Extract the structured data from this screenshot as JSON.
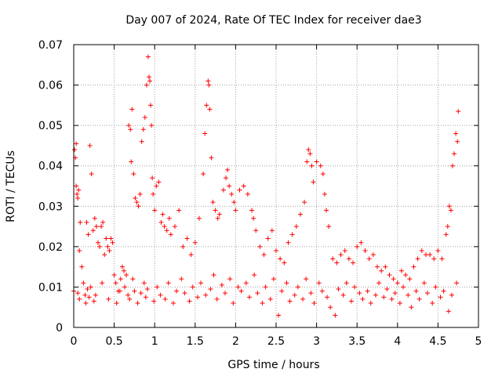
{
  "chart_data": {
    "type": "scatter",
    "title": "Day 007 of 2024, Rate Of TEC Index for receiver dae3",
    "xlabel": "GPS time / hours",
    "ylabel": "ROTI / TECUs",
    "xlim": [
      0,
      5
    ],
    "ylim": [
      0,
      0.07
    ],
    "xticks": [
      0,
      0.5,
      1,
      1.5,
      2,
      2.5,
      3,
      3.5,
      4,
      4.5,
      5
    ],
    "yticks": [
      0,
      0.01,
      0.02,
      0.03,
      0.04,
      0.05,
      0.06,
      0.07
    ],
    "xtick_labels": [
      "0",
      "0.5",
      "1",
      "1.5",
      "2",
      "2.5",
      "3",
      "3.5",
      "4",
      "4.5",
      "5"
    ],
    "ytick_labels": [
      "0",
      "0.01",
      "0.02",
      "0.03",
      "0.04",
      "0.05",
      "0.06",
      "0.07"
    ],
    "grid": true,
    "marker": "+",
    "color": "#ff0000",
    "series": [
      {
        "name": "dae3",
        "x": [
          0.0,
          0.01,
          0.02,
          0.03,
          0.04,
          0.05,
          0.06,
          0.07,
          0.08,
          0.1,
          0.12,
          0.14,
          0.16,
          0.18,
          0.2,
          0.22,
          0.24,
          0.26,
          0.28,
          0.3,
          0.32,
          0.34,
          0.36,
          0.38,
          0.4,
          0.42,
          0.44,
          0.46,
          0.48,
          0.5,
          0.52,
          0.55,
          0.58,
          0.6,
          0.62,
          0.65,
          0.68,
          0.7,
          0.71,
          0.72,
          0.74,
          0.76,
          0.78,
          0.8,
          0.82,
          0.84,
          0.86,
          0.88,
          0.9,
          0.92,
          0.93,
          0.94,
          0.95,
          0.96,
          0.97,
          0.98,
          1.0,
          1.02,
          1.05,
          1.08,
          1.1,
          1.12,
          1.15,
          1.18,
          1.2,
          1.25,
          1.3,
          1.35,
          1.4,
          1.45,
          1.5,
          1.55,
          1.6,
          1.62,
          1.64,
          1.66,
          1.67,
          1.68,
          1.7,
          1.72,
          1.75,
          1.78,
          1.8,
          1.85,
          1.88,
          1.9,
          1.92,
          1.95,
          1.98,
          2.0,
          2.05,
          2.1,
          2.15,
          2.2,
          2.22,
          2.25,
          2.3,
          2.35,
          2.4,
          2.45,
          2.5,
          2.55,
          2.6,
          2.65,
          2.7,
          2.75,
          2.8,
          2.85,
          2.88,
          2.9,
          2.92,
          2.94,
          2.96,
          3.0,
          3.05,
          3.08,
          3.1,
          3.12,
          3.15,
          3.2,
          3.25,
          3.3,
          3.35,
          3.4,
          3.45,
          3.5,
          3.55,
          3.6,
          3.65,
          3.7,
          3.75,
          3.8,
          3.85,
          3.9,
          3.95,
          4.0,
          4.05,
          4.1,
          4.15,
          4.2,
          4.25,
          4.3,
          4.35,
          4.4,
          4.45,
          4.5,
          4.55,
          4.6,
          4.62,
          4.64,
          4.66,
          4.68,
          4.7,
          4.72,
          4.74,
          4.75,
          0.03,
          0.05,
          0.07,
          0.15,
          0.17,
          0.19,
          0.21,
          0.25,
          0.27,
          0.35,
          0.43,
          0.53,
          0.57,
          0.63,
          0.67,
          0.69,
          0.73,
          0.75,
          0.79,
          0.83,
          0.87,
          0.89,
          0.91,
          0.99,
          1.03,
          1.07,
          1.13,
          1.17,
          1.23,
          1.27,
          1.33,
          1.37,
          1.43,
          1.47,
          1.53,
          1.57,
          1.63,
          1.69,
          1.73,
          1.77,
          1.83,
          1.87,
          1.93,
          1.97,
          2.03,
          2.07,
          2.13,
          2.17,
          2.23,
          2.27,
          2.33,
          2.37,
          2.43,
          2.47,
          2.53,
          2.57,
          2.63,
          2.67,
          2.73,
          2.77,
          2.83,
          2.87,
          2.93,
          2.97,
          3.03,
          3.07,
          3.13,
          3.17,
          3.23,
          3.27,
          3.33,
          3.37,
          3.43,
          3.47,
          3.53,
          3.57,
          3.63,
          3.67,
          3.73,
          3.77,
          3.83,
          3.87,
          3.93,
          3.97,
          4.03,
          4.07,
          4.13,
          4.17,
          4.23,
          4.27,
          4.33,
          4.37,
          4.43,
          4.47,
          4.53,
          4.57,
          4.63,
          4.67,
          4.73
        ],
        "y": [
          0.009,
          0.044,
          0.042,
          0.035,
          0.033,
          0.032,
          0.034,
          0.019,
          0.026,
          0.015,
          0.011,
          0.008,
          0.026,
          0.023,
          0.045,
          0.038,
          0.024,
          0.027,
          0.025,
          0.021,
          0.02,
          0.025,
          0.026,
          0.018,
          0.022,
          0.02,
          0.019,
          0.022,
          0.021,
          0.013,
          0.011,
          0.009,
          0.012,
          0.015,
          0.014,
          0.013,
          0.05,
          0.049,
          0.041,
          0.054,
          0.038,
          0.032,
          0.031,
          0.03,
          0.033,
          0.046,
          0.049,
          0.052,
          0.06,
          0.067,
          0.062,
          0.061,
          0.055,
          0.05,
          0.037,
          0.033,
          0.029,
          0.035,
          0.036,
          0.026,
          0.028,
          0.025,
          0.024,
          0.027,
          0.023,
          0.025,
          0.029,
          0.02,
          0.022,
          0.018,
          0.021,
          0.027,
          0.038,
          0.048,
          0.055,
          0.061,
          0.06,
          0.054,
          0.042,
          0.031,
          0.029,
          0.027,
          0.028,
          0.034,
          0.037,
          0.039,
          0.035,
          0.033,
          0.031,
          0.029,
          0.034,
          0.035,
          0.033,
          0.029,
          0.027,
          0.024,
          0.02,
          0.018,
          0.022,
          0.024,
          0.019,
          0.017,
          0.016,
          0.021,
          0.023,
          0.025,
          0.028,
          0.031,
          0.041,
          0.044,
          0.043,
          0.04,
          0.036,
          0.041,
          0.04,
          0.038,
          0.033,
          0.029,
          0.025,
          0.017,
          0.016,
          0.018,
          0.019,
          0.017,
          0.016,
          0.02,
          0.021,
          0.019,
          0.017,
          0.018,
          0.015,
          0.014,
          0.015,
          0.013,
          0.012,
          0.011,
          0.014,
          0.013,
          0.012,
          0.015,
          0.017,
          0.019,
          0.018,
          0.018,
          0.017,
          0.019,
          0.017,
          0.023,
          0.025,
          0.03,
          0.029,
          0.04,
          0.043,
          0.048,
          0.046,
          0.0535,
          0.0455,
          0.0085,
          0.007,
          0.006,
          0.0095,
          0.0075,
          0.01,
          0.0065,
          0.008,
          0.011,
          0.007,
          0.006,
          0.009,
          0.01,
          0.008,
          0.007,
          0.012,
          0.009,
          0.006,
          0.0085,
          0.011,
          0.0075,
          0.0095,
          0.0065,
          0.01,
          0.008,
          0.007,
          0.011,
          0.006,
          0.009,
          0.012,
          0.0085,
          0.0065,
          0.01,
          0.0075,
          0.011,
          0.008,
          0.0095,
          0.013,
          0.007,
          0.0105,
          0.0085,
          0.012,
          0.006,
          0.01,
          0.009,
          0.011,
          0.0075,
          0.013,
          0.0085,
          0.006,
          0.01,
          0.007,
          0.012,
          0.003,
          0.009,
          0.011,
          0.0065,
          0.008,
          0.01,
          0.007,
          0.012,
          0.0085,
          0.006,
          0.011,
          0.009,
          0.0075,
          0.005,
          0.003,
          0.0095,
          0.008,
          0.011,
          0.0065,
          0.01,
          0.0085,
          0.007,
          0.009,
          0.006,
          0.008,
          0.011,
          0.0075,
          0.0095,
          0.007,
          0.0085,
          0.006,
          0.01,
          0.008,
          0.005,
          0.009,
          0.007,
          0.011,
          0.0085,
          0.006,
          0.01,
          0.0075,
          0.009,
          0.004,
          0.008,
          0.011
        ]
      }
    ]
  }
}
